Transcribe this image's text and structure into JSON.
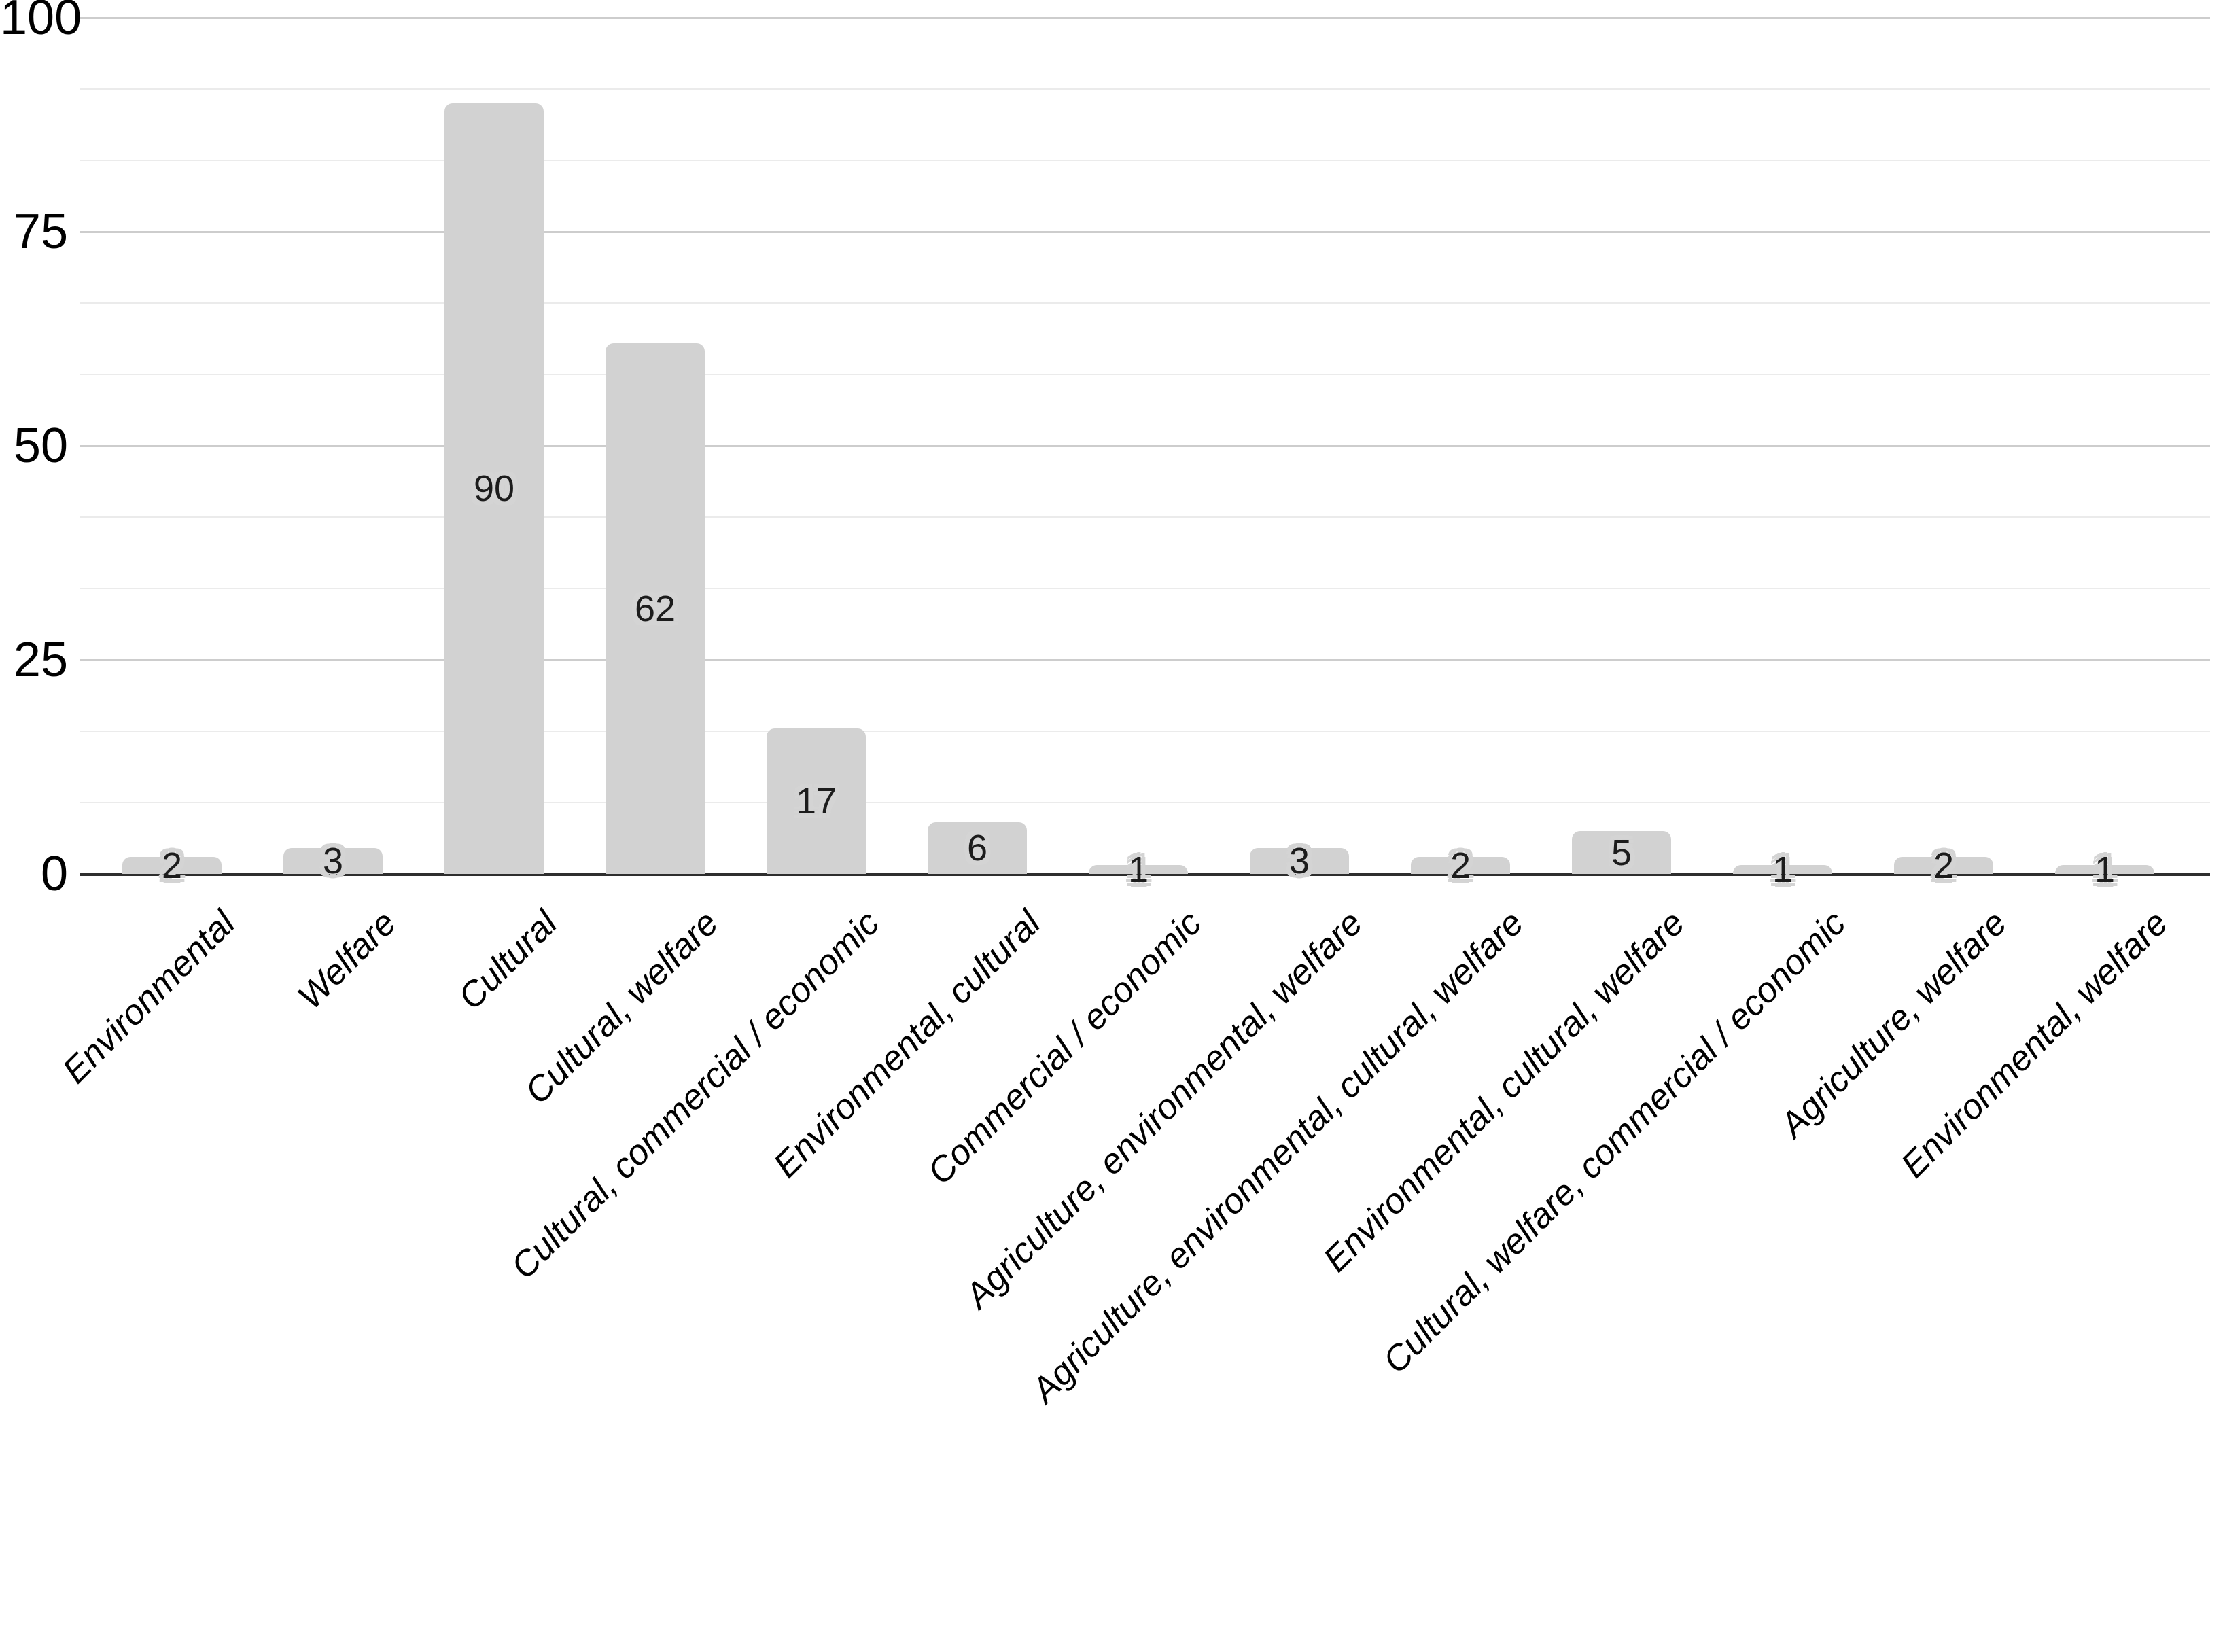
{
  "chart_data": {
    "type": "bar",
    "title": "",
    "xlabel": "",
    "ylabel": "",
    "categories": [
      "Environmental",
      "Welfare",
      "Cultural",
      "Cultural, welfare",
      "Cultural, commercial / economic",
      "Environmental, cultural",
      "Commercial / economic",
      "Agriculture, environmental, welfare",
      "Agriculture, environmental, cultural, welfare",
      "Environmental, cultural, welfare",
      "Cultural, welfare, commercial / economic",
      "Agriculture, welfare",
      "Environmental, welfare"
    ],
    "values": [
      2,
      3,
      90,
      62,
      17,
      6,
      1,
      3,
      2,
      5,
      1,
      2,
      1
    ],
    "value_labels_shown": true,
    "value_label_position": "center-of-bar",
    "ylim": [
      0,
      100
    ],
    "yticks": [
      0,
      25,
      50,
      75,
      100
    ],
    "minor_gridlines_per_major_interval": 2,
    "grid": true,
    "legend_position": "none",
    "x_label_rotation_deg": 45,
    "colors": {
      "bar_fill": "#d2d2d2",
      "value_label_text": "#1c1c1c",
      "value_label_halo": "#d4d4d4",
      "axis_baseline": "#2e2e2e",
      "major_gridline": "#cdcdcd",
      "minor_gridline": "#ebebeb",
      "tick_label_text": "#000000",
      "category_label_text": "#000000",
      "background": "#ffffff"
    }
  }
}
